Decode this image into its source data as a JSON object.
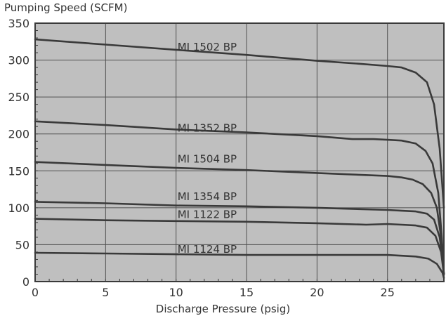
{
  "chart_data": {
    "type": "line",
    "title": "",
    "ylabel": "Pumping Speed (SCFM)",
    "xlabel": "Discharge Pressure (psig)",
    "xlim": [
      0,
      29
    ],
    "ylim": [
      0,
      350
    ],
    "xticks": [
      0,
      5,
      10,
      15,
      20,
      25
    ],
    "yticks": [
      0,
      50,
      100,
      150,
      200,
      250,
      300,
      350
    ],
    "grid": true,
    "colors": {
      "plot_background": "#bfbfbf",
      "line": "#3a3a3a",
      "grid": "#505050",
      "text": "#333333"
    },
    "series": [
      {
        "name": "MI 1502 BP",
        "label_at": [
          10,
          315
        ],
        "points": [
          [
            0,
            328
          ],
          [
            5,
            321
          ],
          [
            10,
            314
          ],
          [
            15,
            307
          ],
          [
            20,
            299
          ],
          [
            23,
            295
          ],
          [
            25,
            292
          ],
          [
            26,
            290
          ],
          [
            27,
            283
          ],
          [
            27.8,
            270
          ],
          [
            28.3,
            240
          ],
          [
            28.7,
            180
          ],
          [
            29,
            100
          ]
        ]
      },
      {
        "name": "MI 1352 BP",
        "label_at": [
          10,
          205
        ],
        "points": [
          [
            0,
            217
          ],
          [
            5,
            212
          ],
          [
            10,
            206
          ],
          [
            15,
            202
          ],
          [
            20,
            197
          ],
          [
            22.5,
            193
          ],
          [
            24,
            193
          ],
          [
            25,
            192
          ],
          [
            26,
            191
          ],
          [
            27,
            187
          ],
          [
            27.7,
            177
          ],
          [
            28.2,
            160
          ],
          [
            28.6,
            120
          ],
          [
            28.85,
            60
          ],
          [
            29,
            10
          ]
        ]
      },
      {
        "name": "MI 1504 BP",
        "label_at": [
          10,
          163
        ],
        "points": [
          [
            0,
            162
          ],
          [
            5,
            158
          ],
          [
            10,
            154
          ],
          [
            15,
            151
          ],
          [
            20,
            147
          ],
          [
            25,
            143
          ],
          [
            26,
            141
          ],
          [
            26.8,
            138
          ],
          [
            27.5,
            132
          ],
          [
            28.1,
            120
          ],
          [
            28.5,
            100
          ],
          [
            28.8,
            60
          ],
          [
            29,
            10
          ]
        ]
      },
      {
        "name": "MI 1354 BP",
        "label_at": [
          10,
          112
        ],
        "points": [
          [
            0,
            108
          ],
          [
            5,
            106
          ],
          [
            10,
            103
          ],
          [
            15,
            102
          ],
          [
            20,
            100
          ],
          [
            25,
            97
          ],
          [
            26,
            96
          ],
          [
            27,
            95
          ],
          [
            27.8,
            92
          ],
          [
            28.3,
            84
          ],
          [
            28.7,
            60
          ],
          [
            28.9,
            30
          ],
          [
            29,
            10
          ]
        ]
      },
      {
        "name": "MI 1122 BP",
        "label_at": [
          10,
          88
        ],
        "points": [
          [
            0,
            85
          ],
          [
            5,
            83
          ],
          [
            10,
            82
          ],
          [
            15,
            81
          ],
          [
            20,
            79
          ],
          [
            23.5,
            77
          ],
          [
            25,
            78
          ],
          [
            26,
            77
          ],
          [
            27,
            76
          ],
          [
            27.8,
            73
          ],
          [
            28.4,
            62
          ],
          [
            28.8,
            40
          ],
          [
            29,
            10
          ]
        ]
      },
      {
        "name": "MI 1124 BP",
        "label_at": [
          10,
          41
        ],
        "points": [
          [
            0,
            39
          ],
          [
            5,
            38
          ],
          [
            10,
            37
          ],
          [
            15,
            36
          ],
          [
            20,
            36
          ],
          [
            25,
            36
          ],
          [
            26,
            35
          ],
          [
            27,
            34
          ],
          [
            27.9,
            31
          ],
          [
            28.5,
            24
          ],
          [
            28.9,
            12
          ],
          [
            29,
            5
          ]
        ]
      }
    ]
  }
}
